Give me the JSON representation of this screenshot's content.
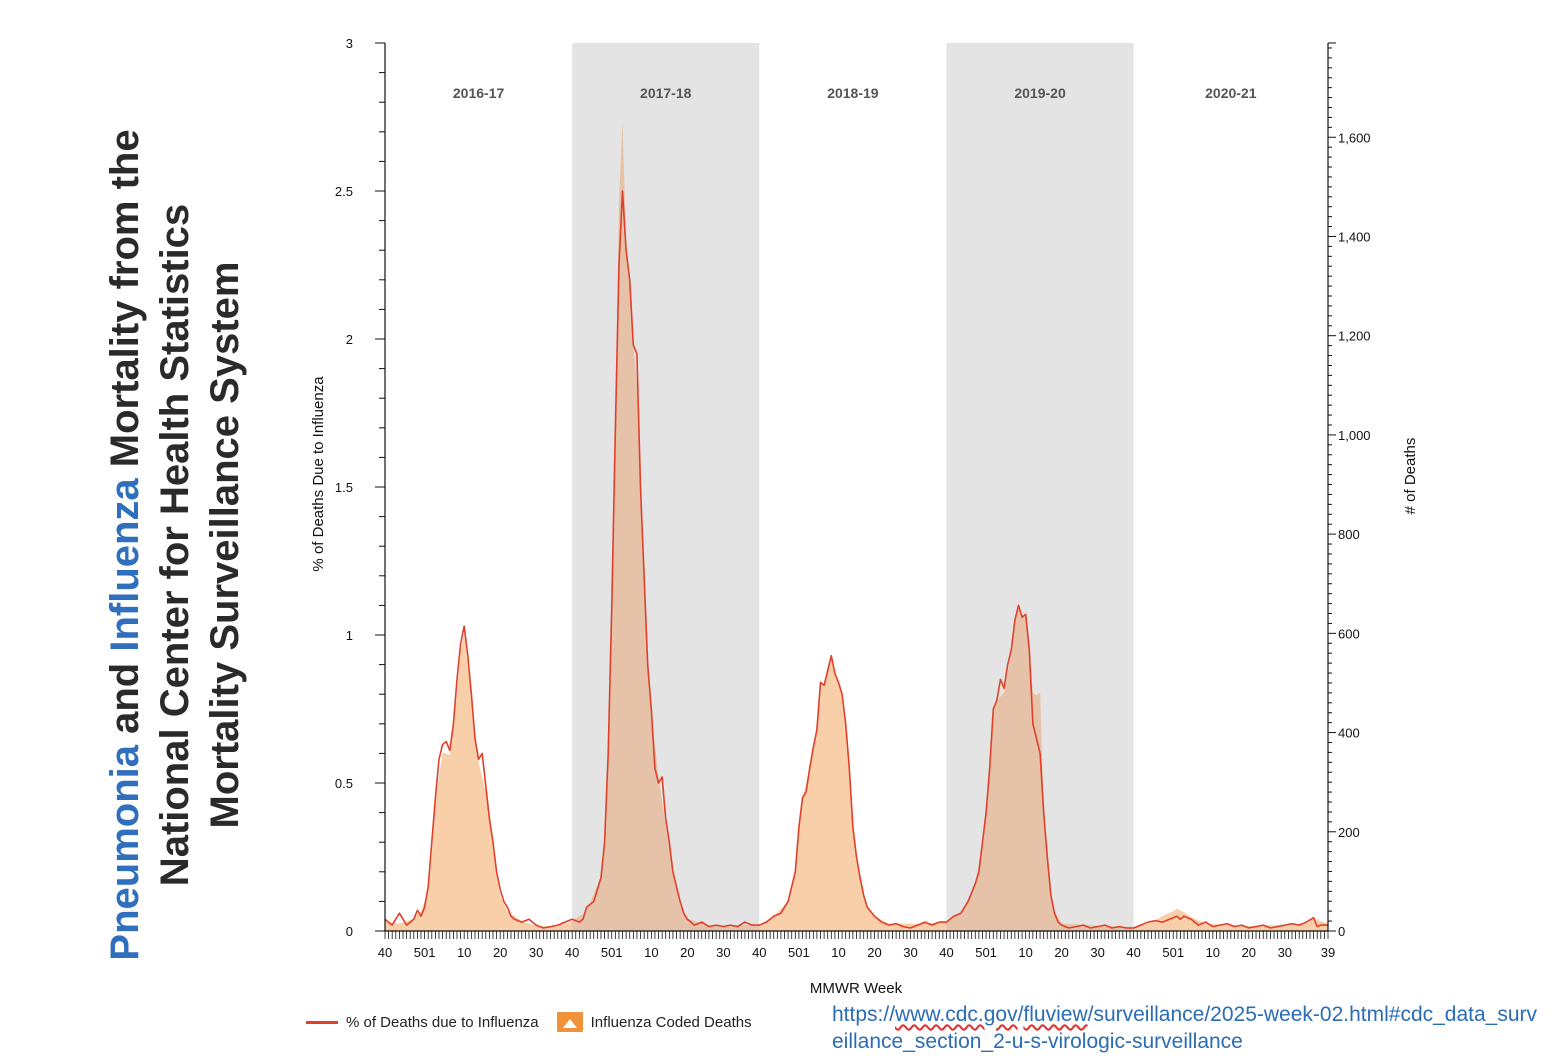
{
  "title": {
    "line1": [
      {
        "text": "Pneumonia",
        "blue": true
      },
      {
        "text": " and ",
        "blue": false
      },
      {
        "text": "Influenza",
        "blue": true
      },
      {
        "text": " Mortality from the",
        "blue": false
      }
    ],
    "line2": "National  Center for Health Statistics",
    "line3": "Mortality Surveillance System"
  },
  "legend": {
    "line_label": "% of Deaths due to Influenza",
    "area_label": "Influenza Coded Deaths"
  },
  "source_url": {
    "part1": "https://",
    "part2": "www.cdc.gov",
    "part3": "/",
    "part4": "fluview",
    "part5": "/surveillance/2025-week-02.html#cdc_data_surveillance_section_2-u-s-virologic-surveillance"
  },
  "colors": {
    "line": "#e0402a",
    "area_fill": "#f8cfa9",
    "area_fill_shaded": "#e6c3a8",
    "season_shade": "#e4e4e4",
    "axis": "#111111",
    "season_label": "#555555",
    "title_blue": "#2f6fbd"
  },
  "chart_data": {
    "type": "area",
    "xlabel": "MMWR Week",
    "ylabel_left": "% of Deaths Due to Influenza",
    "ylabel_right": "# of Deaths",
    "ylim_left": [
      0,
      3
    ],
    "ylim_right": [
      0,
      1790
    ],
    "left_ticks": [
      "0",
      "0.5",
      "1",
      "1.5",
      "2",
      "2.5",
      "3"
    ],
    "right_ticks": [
      "0",
      "200",
      "400",
      "600",
      "800",
      "1,000",
      "1,200",
      "1,400",
      "1,600"
    ],
    "x_tick_labels": [
      "40",
      "501",
      "10",
      "20",
      "30",
      "40",
      "501",
      "10",
      "20",
      "30",
      "40",
      "501",
      "10",
      "20",
      "30",
      "40",
      "501",
      "10",
      "20",
      "30",
      "40",
      "501",
      "10",
      "20",
      "30",
      "39"
    ],
    "x_tick_weeks": [
      0,
      11,
      22,
      32,
      42,
      52,
      63,
      74,
      84,
      94,
      104,
      115,
      126,
      136,
      146,
      156,
      167,
      178,
      188,
      198,
      208,
      219,
      230,
      240,
      250,
      262
    ],
    "total_weeks": 262,
    "seasons": [
      {
        "label": "2016-17",
        "start": 0,
        "end": 52,
        "shaded": false
      },
      {
        "label": "2017-18",
        "start": 52,
        "end": 104,
        "shaded": true
      },
      {
        "label": "2018-19",
        "start": 104,
        "end": 156,
        "shaded": false
      },
      {
        "label": "2019-20",
        "start": 156,
        "end": 208,
        "shaded": true
      },
      {
        "label": "2020-21",
        "start": 208,
        "end": 262,
        "shaded": false
      }
    ],
    "series": [
      {
        "name": "% of Deaths due to Influenza",
        "axis": "left",
        "points": [
          [
            0,
            0.04
          ],
          [
            2,
            0.02
          ],
          [
            4,
            0.06
          ],
          [
            6,
            0.02
          ],
          [
            8,
            0.04
          ],
          [
            9,
            0.07
          ],
          [
            10,
            0.05
          ],
          [
            11,
            0.08
          ],
          [
            12,
            0.15
          ],
          [
            13,
            0.3
          ],
          [
            14,
            0.45
          ],
          [
            15,
            0.58
          ],
          [
            16,
            0.63
          ],
          [
            17,
            0.64
          ],
          [
            18,
            0.61
          ],
          [
            19,
            0.7
          ],
          [
            20,
            0.85
          ],
          [
            21,
            0.97
          ],
          [
            22,
            1.03
          ],
          [
            23,
            0.93
          ],
          [
            24,
            0.8
          ],
          [
            25,
            0.65
          ],
          [
            26,
            0.58
          ],
          [
            27,
            0.6
          ],
          [
            28,
            0.49
          ],
          [
            29,
            0.38
          ],
          [
            30,
            0.3
          ],
          [
            31,
            0.2
          ],
          [
            32,
            0.14
          ],
          [
            33,
            0.1
          ],
          [
            34,
            0.08
          ],
          [
            35,
            0.05
          ],
          [
            36,
            0.04
          ],
          [
            38,
            0.03
          ],
          [
            40,
            0.04
          ],
          [
            42,
            0.02
          ],
          [
            44,
            0.01
          ],
          [
            46,
            0.015
          ],
          [
            48,
            0.02
          ],
          [
            50,
            0.03
          ],
          [
            52,
            0.04
          ],
          [
            54,
            0.03
          ],
          [
            55,
            0.04
          ],
          [
            56,
            0.08
          ],
          [
            58,
            0.1
          ],
          [
            60,
            0.18
          ],
          [
            61,
            0.3
          ],
          [
            62,
            0.6
          ],
          [
            63,
            1.1
          ],
          [
            64,
            1.7
          ],
          [
            65,
            2.25
          ],
          [
            66,
            2.5
          ],
          [
            67,
            2.3
          ],
          [
            68,
            2.2
          ],
          [
            69,
            1.98
          ],
          [
            70,
            1.95
          ],
          [
            71,
            1.5
          ],
          [
            72,
            1.2
          ],
          [
            73,
            0.9
          ],
          [
            74,
            0.75
          ],
          [
            75,
            0.55
          ],
          [
            76,
            0.5
          ],
          [
            77,
            0.52
          ],
          [
            78,
            0.38
          ],
          [
            79,
            0.3
          ],
          [
            80,
            0.2
          ],
          [
            81,
            0.15
          ],
          [
            82,
            0.1
          ],
          [
            83,
            0.06
          ],
          [
            84,
            0.04
          ],
          [
            86,
            0.02
          ],
          [
            88,
            0.03
          ],
          [
            90,
            0.015
          ],
          [
            92,
            0.02
          ],
          [
            94,
            0.015
          ],
          [
            96,
            0.02
          ],
          [
            98,
            0.015
          ],
          [
            100,
            0.03
          ],
          [
            102,
            0.02
          ],
          [
            104,
            0.02
          ],
          [
            106,
            0.03
          ],
          [
            108,
            0.05
          ],
          [
            110,
            0.06
          ],
          [
            112,
            0.1
          ],
          [
            114,
            0.2
          ],
          [
            115,
            0.35
          ],
          [
            116,
            0.45
          ],
          [
            117,
            0.47
          ],
          [
            118,
            0.55
          ],
          [
            119,
            0.62
          ],
          [
            120,
            0.68
          ],
          [
            121,
            0.84
          ],
          [
            122,
            0.83
          ],
          [
            123,
            0.88
          ],
          [
            124,
            0.93
          ],
          [
            125,
            0.87
          ],
          [
            126,
            0.84
          ],
          [
            127,
            0.8
          ],
          [
            128,
            0.7
          ],
          [
            129,
            0.55
          ],
          [
            130,
            0.35
          ],
          [
            131,
            0.25
          ],
          [
            132,
            0.18
          ],
          [
            133,
            0.12
          ],
          [
            134,
            0.08
          ],
          [
            136,
            0.05
          ],
          [
            138,
            0.03
          ],
          [
            140,
            0.02
          ],
          [
            142,
            0.025
          ],
          [
            144,
            0.015
          ],
          [
            146,
            0.01
          ],
          [
            148,
            0.02
          ],
          [
            150,
            0.03
          ],
          [
            152,
            0.02
          ],
          [
            154,
            0.03
          ],
          [
            156,
            0.03
          ],
          [
            158,
            0.05
          ],
          [
            160,
            0.06
          ],
          [
            162,
            0.1
          ],
          [
            164,
            0.16
          ],
          [
            165,
            0.2
          ],
          [
            166,
            0.3
          ],
          [
            167,
            0.4
          ],
          [
            168,
            0.55
          ],
          [
            169,
            0.75
          ],
          [
            170,
            0.78
          ],
          [
            171,
            0.85
          ],
          [
            172,
            0.82
          ],
          [
            173,
            0.9
          ],
          [
            174,
            0.95
          ],
          [
            175,
            1.05
          ],
          [
            176,
            1.1
          ],
          [
            177,
            1.06
          ],
          [
            178,
            1.07
          ],
          [
            179,
            0.95
          ],
          [
            180,
            0.7
          ],
          [
            181,
            0.65
          ],
          [
            182,
            0.6
          ],
          [
            183,
            0.4
          ],
          [
            184,
            0.25
          ],
          [
            185,
            0.12
          ],
          [
            186,
            0.06
          ],
          [
            187,
            0.03
          ],
          [
            188,
            0.02
          ],
          [
            190,
            0.01
          ],
          [
            192,
            0.015
          ],
          [
            194,
            0.02
          ],
          [
            196,
            0.01
          ],
          [
            198,
            0.015
          ],
          [
            200,
            0.02
          ],
          [
            202,
            0.01
          ],
          [
            204,
            0.015
          ],
          [
            206,
            0.01
          ],
          [
            208,
            0.01
          ],
          [
            210,
            0.02
          ],
          [
            212,
            0.03
          ],
          [
            214,
            0.035
          ],
          [
            216,
            0.03
          ],
          [
            218,
            0.04
          ],
          [
            220,
            0.05
          ],
          [
            221,
            0.04
          ],
          [
            222,
            0.05
          ],
          [
            224,
            0.04
          ],
          [
            226,
            0.02
          ],
          [
            228,
            0.03
          ],
          [
            230,
            0.015
          ],
          [
            232,
            0.02
          ],
          [
            234,
            0.025
          ],
          [
            236,
            0.015
          ],
          [
            238,
            0.02
          ],
          [
            240,
            0.01
          ],
          [
            242,
            0.015
          ],
          [
            244,
            0.02
          ],
          [
            246,
            0.01
          ],
          [
            248,
            0.015
          ],
          [
            250,
            0.02
          ],
          [
            252,
            0.025
          ],
          [
            254,
            0.02
          ],
          [
            256,
            0.03
          ],
          [
            258,
            0.045
          ],
          [
            259,
            0.015
          ],
          [
            260,
            0.02
          ],
          [
            262,
            0.02
          ]
        ]
      },
      {
        "name": "Influenza Coded Deaths",
        "axis": "right",
        "points": [
          [
            0,
            20
          ],
          [
            4,
            15
          ],
          [
            8,
            25
          ],
          [
            10,
            40
          ],
          [
            12,
            80
          ],
          [
            13,
            150
          ],
          [
            14,
            260
          ],
          [
            16,
            360
          ],
          [
            18,
            355
          ],
          [
            20,
            480
          ],
          [
            21,
            560
          ],
          [
            22,
            600
          ],
          [
            24,
            470
          ],
          [
            26,
            340
          ],
          [
            28,
            280
          ],
          [
            30,
            170
          ],
          [
            31,
            110
          ],
          [
            32,
            70
          ],
          [
            34,
            40
          ],
          [
            38,
            20
          ],
          [
            42,
            10
          ],
          [
            46,
            10
          ],
          [
            50,
            15
          ],
          [
            52,
            20
          ],
          [
            56,
            40
          ],
          [
            60,
            110
          ],
          [
            61,
            180
          ],
          [
            62,
            350
          ],
          [
            63,
            650
          ],
          [
            64,
            1000
          ],
          [
            65,
            1470
          ],
          [
            66,
            1630
          ],
          [
            67,
            1390
          ],
          [
            68,
            1300
          ],
          [
            69,
            1180
          ],
          [
            70,
            1100
          ],
          [
            71,
            870
          ],
          [
            72,
            680
          ],
          [
            73,
            530
          ],
          [
            74,
            440
          ],
          [
            76,
            310
          ],
          [
            78,
            210
          ],
          [
            80,
            120
          ],
          [
            82,
            50
          ],
          [
            84,
            25
          ],
          [
            90,
            10
          ],
          [
            100,
            12
          ],
          [
            104,
            12
          ],
          [
            108,
            30
          ],
          [
            112,
            60
          ],
          [
            114,
            120
          ],
          [
            116,
            265
          ],
          [
            118,
            330
          ],
          [
            120,
            400
          ],
          [
            121,
            495
          ],
          [
            122,
            500
          ],
          [
            123,
            530
          ],
          [
            124,
            555
          ],
          [
            125,
            515
          ],
          [
            126,
            500
          ],
          [
            127,
            470
          ],
          [
            128,
            410
          ],
          [
            129,
            320
          ],
          [
            130,
            210
          ],
          [
            131,
            150
          ],
          [
            132,
            100
          ],
          [
            134,
            50
          ],
          [
            136,
            30
          ],
          [
            140,
            15
          ],
          [
            150,
            15
          ],
          [
            156,
            20
          ],
          [
            160,
            35
          ],
          [
            164,
            95
          ],
          [
            166,
            180
          ],
          [
            168,
            320
          ],
          [
            169,
            450
          ],
          [
            170,
            465
          ],
          [
            172,
            480
          ],
          [
            174,
            560
          ],
          [
            175,
            620
          ],
          [
            176,
            660
          ],
          [
            177,
            635
          ],
          [
            178,
            640
          ],
          [
            179,
            570
          ],
          [
            180,
            480
          ],
          [
            181,
            475
          ],
          [
            182,
            480
          ],
          [
            183,
            250
          ],
          [
            184,
            150
          ],
          [
            185,
            75
          ],
          [
            186,
            40
          ],
          [
            188,
            15
          ],
          [
            200,
            10
          ],
          [
            208,
            8
          ],
          [
            212,
            15
          ],
          [
            216,
            30
          ],
          [
            219,
            40
          ],
          [
            220,
            45
          ],
          [
            222,
            38
          ],
          [
            224,
            28
          ],
          [
            228,
            15
          ],
          [
            240,
            10
          ],
          [
            256,
            15
          ],
          [
            258,
            25
          ],
          [
            262,
            15
          ]
        ]
      }
    ]
  }
}
